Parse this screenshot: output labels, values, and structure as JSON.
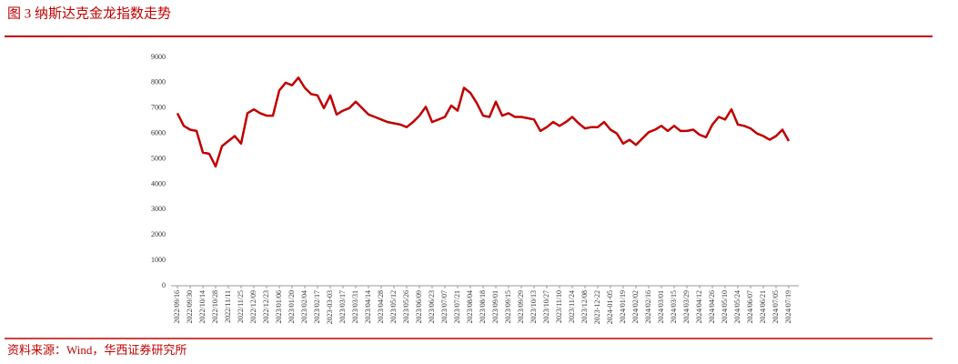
{
  "chart_data": {
    "type": "line",
    "title": "图 3  纳斯达克金龙指数走势",
    "source": "资料来源：Wind，华西证券研究所",
    "categories": [
      "2022/09/16",
      null,
      "2022/09/30",
      null,
      "2022/10/14",
      null,
      "2022/10/28",
      null,
      "2022/11/11",
      null,
      "2022/11/25",
      null,
      "2022/12/09",
      null,
      "2022/12/23",
      null,
      "2023/01/06",
      null,
      "2023/01/20",
      null,
      "2023/02/04",
      null,
      "2023/02/17",
      null,
      "2023-03-03",
      null,
      "2023/03/17",
      null,
      "2023/03/31",
      null,
      "2023/04/14",
      null,
      "2023/04/28",
      null,
      "2023/05/12",
      null,
      "2023/05/26",
      null,
      "2023/06/09",
      null,
      "2023/06/23",
      null,
      "2023/07/07",
      null,
      "2023/07/21",
      null,
      "2023/08/04",
      null,
      "2023/08/18",
      null,
      "2023/09/01",
      null,
      "2023/09/15",
      null,
      "2023/09/29",
      null,
      "2023/10/13",
      null,
      "2023/10/27",
      null,
      "2023/11/10",
      null,
      "2023/11/24",
      null,
      "2023/12/08",
      null,
      "2023-12-22",
      null,
      "2024-01-05",
      null,
      "2024/01/19",
      null,
      "2024/02/02",
      null,
      "2024/02/16",
      null,
      "2024/03/01",
      null,
      "2024/03/15",
      null,
      "2024/03/29",
      null,
      "2024/04/12",
      null,
      "2024/04/26",
      null,
      "2024/05/10",
      null,
      "2024/05/24",
      null,
      "2024/06/07",
      null,
      "2024/06/21",
      null,
      "2024/07/05",
      null,
      "2024/07/19"
    ],
    "series": [
      {
        "name": "纳斯达克金龙指数",
        "color": "#c00000",
        "values": [
          6800,
          6300,
          6150,
          6100,
          5250,
          5200,
          4700,
          5500,
          5700,
          5900,
          5600,
          6800,
          6950,
          6800,
          6700,
          6700,
          7700,
          8000,
          7900,
          8200,
          7800,
          7550,
          7500,
          7000,
          7500,
          6750,
          6900,
          7000,
          7250,
          7000,
          6750,
          6650,
          6550,
          6450,
          6400,
          6350,
          6250,
          6450,
          6700,
          7050,
          6450,
          6550,
          6650,
          7100,
          6900,
          7800,
          7600,
          7200,
          6700,
          6650,
          7250,
          6700,
          6800,
          6650,
          6650,
          6600,
          6550,
          6100,
          6250,
          6450,
          6300,
          6450,
          6650,
          6400,
          6200,
          6250,
          6250,
          6450,
          6150,
          6000,
          5600,
          5750,
          5550,
          5800,
          6050,
          6150,
          6300,
          6100,
          6300,
          6100,
          6100,
          6150,
          5950,
          5850,
          6350,
          6650,
          6550,
          6950,
          6350,
          6300,
          6200,
          6000,
          5900,
          5750,
          5900,
          6150,
          5700
        ]
      }
    ],
    "ylim": [
      0,
      9000
    ],
    "yticks": [
      0,
      1000,
      2000,
      3000,
      4000,
      5000,
      6000,
      7000,
      8000,
      9000
    ],
    "grid": false
  }
}
